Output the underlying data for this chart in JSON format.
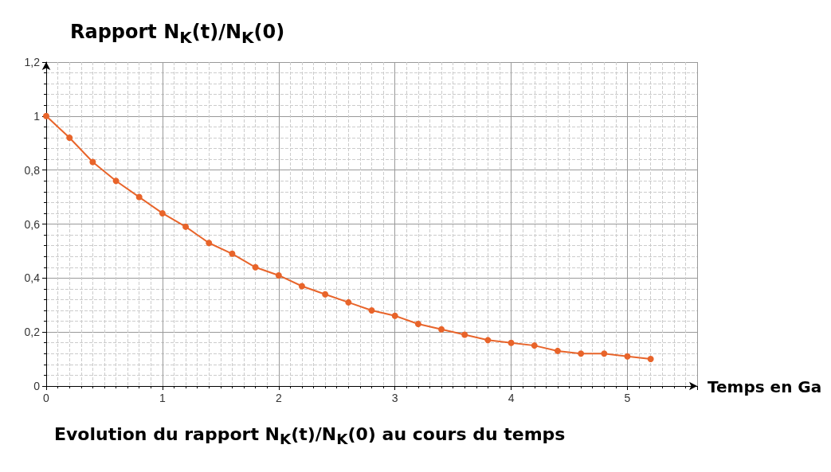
{
  "chart_data": {
    "type": "line",
    "title": "Evolution du rapport N$_{K}$(t)/N$_{K}$(0) au cours du temps",
    "xlabel": "Temps en Ga",
    "ylabel": "Rapport N$_{K}$(t)/N$_{K}$(0)",
    "x": [
      0,
      0.2,
      0.4,
      0.6,
      0.8,
      1.0,
      1.2,
      1.4,
      1.6,
      1.8,
      2.0,
      2.2,
      2.4,
      2.6,
      2.8,
      3.0,
      3.2,
      3.4,
      3.6,
      3.8,
      4.0,
      4.2,
      4.4,
      4.6,
      4.8,
      5.0,
      5.2
    ],
    "series": [
      {
        "color": "#e8642a",
        "values": [
          1,
          0.92,
          0.83,
          0.76,
          0.7,
          0.64,
          0.59,
          0.53,
          0.49,
          0.44,
          0.41,
          0.37,
          0.34,
          0.31,
          0.28,
          0.26,
          0.23,
          0.21,
          0.19,
          0.17,
          0.16,
          0.15,
          0.13,
          0.12,
          0.12,
          0.11,
          0.1
        ]
      }
    ],
    "xlim": [
      0,
      5.6
    ],
    "xticks": [
      0,
      1,
      2,
      3,
      4,
      5
    ],
    "ylim": [
      0,
      1.2
    ],
    "yticks": [
      0,
      {
        "value": 0.2,
        "label": "0,2"
      },
      {
        "value": 0.4,
        "label": "0,4"
      },
      {
        "value": 0.6,
        "label": "0,6"
      },
      {
        "value": 0.8,
        "label": "0,8"
      },
      1,
      {
        "value": 1.2,
        "label": "1,2"
      }
    ],
    "grid": true,
    "marker": "circle",
    "line_style": "solid"
  }
}
